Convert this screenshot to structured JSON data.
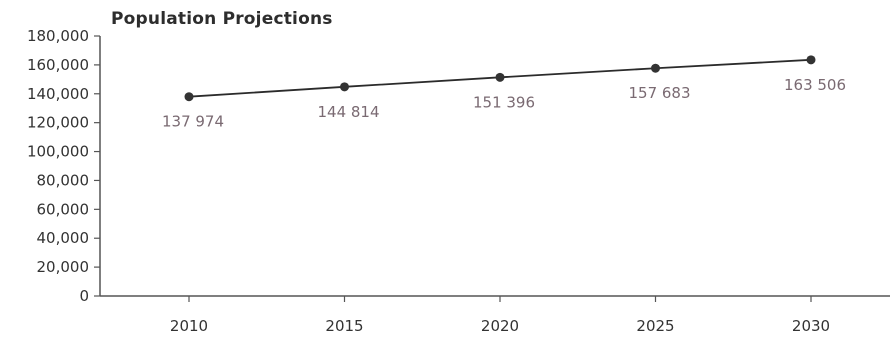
{
  "chart_data": {
    "type": "line",
    "title": "Population Projections",
    "xlabel": "",
    "ylabel": "",
    "categories": [
      "2010",
      "2015",
      "2020",
      "2025",
      "2030"
    ],
    "series": [
      {
        "values": [
          137974,
          144814,
          151396,
          157683,
          163506
        ],
        "data_labels": [
          "137 974",
          "144 814",
          "151 396",
          "157 683",
          "163 506"
        ]
      }
    ],
    "ylim": [
      0,
      180000
    ],
    "y_ticks": [
      0,
      20000,
      40000,
      60000,
      80000,
      100000,
      120000,
      140000,
      160000,
      180000
    ],
    "y_tick_labels": [
      "0",
      "20,000",
      "40,000",
      "60,000",
      "80,000",
      "100,000",
      "120,000",
      "140,000",
      "160,000",
      "180,000"
    ],
    "grid": false,
    "legend": "none",
    "colors": {
      "line": "#2b2b2b",
      "marker": "#333333",
      "axis": "#555555",
      "data_label": "#7a6a72"
    }
  }
}
